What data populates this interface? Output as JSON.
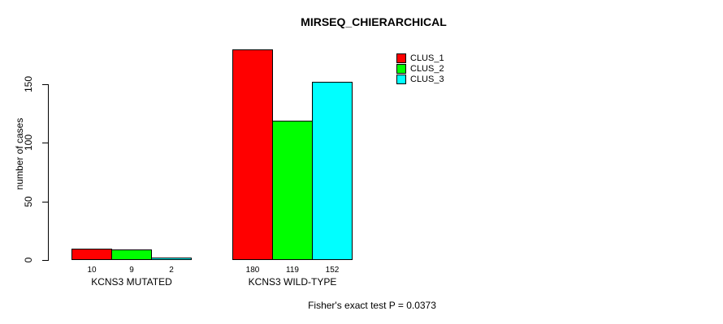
{
  "chart_data": {
    "type": "bar",
    "title": "MIRSEQ_CHIERARCHICAL",
    "ylabel": "number of cases",
    "xlabel": "",
    "categories": [
      "KCNS3 MUTATED",
      "KCNS3 WILD-TYPE"
    ],
    "series": [
      {
        "name": "CLUS_1",
        "color": "#ff0000",
        "values": [
          10,
          180
        ]
      },
      {
        "name": "CLUS_2",
        "color": "#00ff00",
        "values": [
          9,
          119
        ]
      },
      {
        "name": "CLUS_3",
        "color": "#00ffff",
        "values": [
          2,
          152
        ]
      }
    ],
    "bar_value_labels": [
      [
        "10",
        "9",
        "2"
      ],
      [
        "180",
        "119",
        "152"
      ]
    ],
    "yticks": [
      0,
      50,
      100,
      150
    ],
    "ylim": [
      0,
      183
    ],
    "grid": false,
    "legend_position": "top-right",
    "annotation": "Fisher's exact test P = 0.0373"
  }
}
